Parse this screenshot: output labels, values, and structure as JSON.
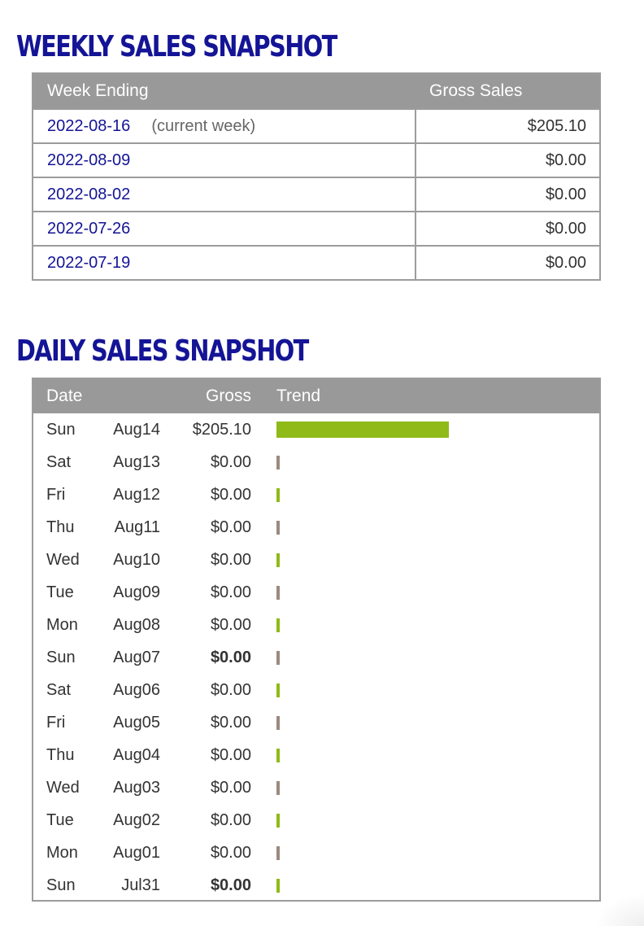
{
  "weekly": {
    "title": "WEEKLY SALES SNAPSHOT",
    "columns": {
      "week_ending": "Week Ending",
      "gross_sales": "Gross Sales"
    },
    "rows": [
      {
        "date": "2022-08-16",
        "note": "(current week)",
        "amount": "$205.10"
      },
      {
        "date": "2022-08-09",
        "note": "",
        "amount": "$0.00"
      },
      {
        "date": "2022-08-02",
        "note": "",
        "amount": "$0.00"
      },
      {
        "date": "2022-07-26",
        "note": "",
        "amount": "$0.00"
      },
      {
        "date": "2022-07-19",
        "note": "",
        "amount": "$0.00"
      }
    ]
  },
  "daily": {
    "title": "DAILY SALES SNAPSHOT",
    "columns": {
      "date": "Date",
      "gross": "Gross",
      "trend": "Trend"
    },
    "colors": {
      "trend_green": "#8fba18",
      "trend_brown": "#9c8a80"
    },
    "rows": [
      {
        "dow": "Sun",
        "date": "Aug14",
        "gross": "$205.10",
        "value": 205.1,
        "bold": false,
        "bar_color": "green"
      },
      {
        "dow": "Sat",
        "date": "Aug13",
        "gross": "$0.00",
        "value": 0,
        "bold": false,
        "bar_color": "brown"
      },
      {
        "dow": "Fri",
        "date": "Aug12",
        "gross": "$0.00",
        "value": 0,
        "bold": false,
        "bar_color": "green"
      },
      {
        "dow": "Thu",
        "date": "Aug11",
        "gross": "$0.00",
        "value": 0,
        "bold": false,
        "bar_color": "brown"
      },
      {
        "dow": "Wed",
        "date": "Aug10",
        "gross": "$0.00",
        "value": 0,
        "bold": false,
        "bar_color": "green"
      },
      {
        "dow": "Tue",
        "date": "Aug09",
        "gross": "$0.00",
        "value": 0,
        "bold": false,
        "bar_color": "brown"
      },
      {
        "dow": "Mon",
        "date": "Aug08",
        "gross": "$0.00",
        "value": 0,
        "bold": false,
        "bar_color": "green"
      },
      {
        "dow": "Sun",
        "date": "Aug07",
        "gross": "$0.00",
        "value": 0,
        "bold": true,
        "bar_color": "brown"
      },
      {
        "dow": "Sat",
        "date": "Aug06",
        "gross": "$0.00",
        "value": 0,
        "bold": false,
        "bar_color": "green"
      },
      {
        "dow": "Fri",
        "date": "Aug05",
        "gross": "$0.00",
        "value": 0,
        "bold": false,
        "bar_color": "brown"
      },
      {
        "dow": "Thu",
        "date": "Aug04",
        "gross": "$0.00",
        "value": 0,
        "bold": false,
        "bar_color": "green"
      },
      {
        "dow": "Wed",
        "date": "Aug03",
        "gross": "$0.00",
        "value": 0,
        "bold": false,
        "bar_color": "brown"
      },
      {
        "dow": "Tue",
        "date": "Aug02",
        "gross": "$0.00",
        "value": 0,
        "bold": false,
        "bar_color": "green"
      },
      {
        "dow": "Mon",
        "date": "Aug01",
        "gross": "$0.00",
        "value": 0,
        "bold": false,
        "bar_color": "brown"
      },
      {
        "dow": "Sun",
        "date": "Jul31",
        "gross": "$0.00",
        "value": 0,
        "bold": true,
        "bar_color": "green"
      }
    ]
  }
}
